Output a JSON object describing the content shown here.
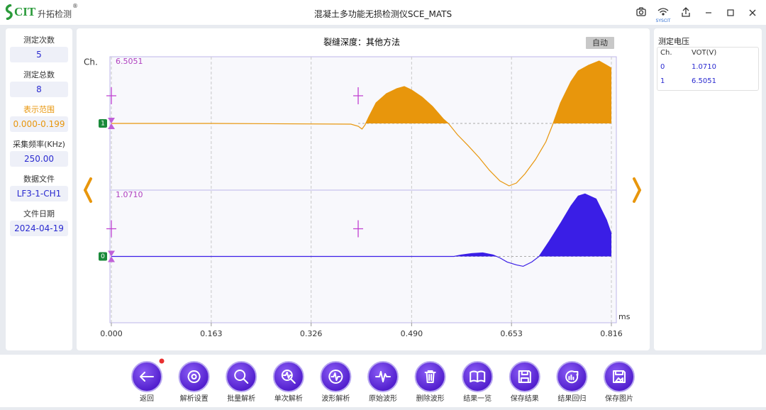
{
  "app": {
    "logo": "CIT",
    "brand": "升拓检测",
    "registered": "®",
    "title": "混凝土多功能无损检测仪SCE_MATS",
    "wifi_label": "SYSCIT"
  },
  "left_panel": {
    "fields": [
      {
        "label": "测定次数",
        "value": "5"
      },
      {
        "label": "测定总数",
        "value": "8"
      },
      {
        "label": "表示范围",
        "value": "0.000-0.199"
      },
      {
        "label": "采集频率(KHz)",
        "value": "250.00"
      },
      {
        "label": "数据文件",
        "value": "LF3-1-CH1"
      },
      {
        "label": "文件日期",
        "value": "2024-04-19"
      }
    ]
  },
  "chart_data": {
    "type": "line",
    "title": "裂缝深度：其他方法",
    "badge": "自动",
    "y_label": "Ch.",
    "x_label": "ms",
    "xlim": [
      0,
      0.816
    ],
    "xticks": [
      {
        "value": 0,
        "label": "0.000"
      },
      0.163,
      0.326,
      {
        "value": 0.49,
        "label": "0.490"
      },
      0.653,
      0.816
    ],
    "grid": true,
    "series": [
      {
        "name": "1",
        "color": "#e8960c",
        "amplitude": 6.5051,
        "x": [
          0,
          0.166,
          0.391,
          0.403,
          0.409,
          0.414,
          0.42,
          0.432,
          0.449,
          0.466,
          0.478,
          0.49,
          0.507,
          0.524,
          0.542,
          0.55,
          0.565,
          0.582,
          0.6,
          0.617,
          0.634,
          0.649,
          0.661,
          0.675,
          0.692,
          0.709,
          0.721,
          0.733,
          0.75,
          0.762,
          0.779,
          0.796,
          0.808,
          0.816
        ],
        "values": [
          0,
          0,
          -0.07,
          -0.29,
          -0.58,
          -0.15,
          0.66,
          2.12,
          3.07,
          3.58,
          3.8,
          3.44,
          2.71,
          1.75,
          0.44,
          0,
          -1.17,
          -2.27,
          -3.51,
          -4.83,
          -5.92,
          -6.43,
          -6.14,
          -5.19,
          -3.73,
          -1.9,
          0,
          2.12,
          4.31,
          5.41,
          6.0,
          6.43,
          6.0,
          5.7
        ]
      },
      {
        "name": "0",
        "color": "#3a1ee6",
        "amplitude": {
          "value": 1.071,
          "label": "1.0710"
        },
        "x": [
          0,
          0.281,
          0.559,
          0.571,
          0.588,
          0.606,
          0.623,
          0.634,
          0.646,
          0.661,
          0.672,
          0.686,
          0.698,
          0.715,
          0.733,
          0.75,
          0.762,
          0.773,
          0.791,
          0.808,
          0.816
        ],
        "values": [
          0,
          0,
          0,
          0.024,
          0.048,
          0.06,
          0.024,
          -0.024,
          -0.095,
          -0.143,
          -0.167,
          -0.095,
          0,
          0.262,
          0.56,
          0.857,
          1.024,
          1.06,
          0.976,
          0.619,
          0.381
        ]
      }
    ]
  },
  "voltage": {
    "title": "测定电压",
    "headers": [
      "Ch.",
      "VOT(V)"
    ],
    "rows": [
      [
        "0",
        "1.0710"
      ],
      [
        "1",
        "6.5051"
      ]
    ]
  },
  "toolbar": [
    "返回",
    "解析设置",
    "批量解析",
    "单次解析",
    "波形解析",
    "原始波形",
    "删除波形",
    "结果一览",
    "保存结果",
    "结果回归",
    "保存图片"
  ]
}
